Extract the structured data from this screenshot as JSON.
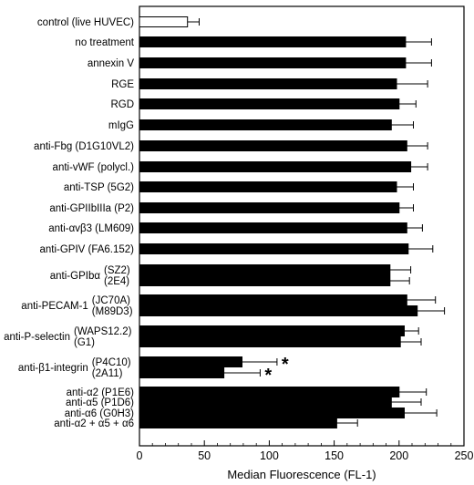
{
  "chart_data": {
    "type": "bar",
    "orientation": "horizontal",
    "xlabel": "Median Fluorescence (FL-1)",
    "xlim": [
      0,
      250
    ],
    "xticks": [
      0,
      50,
      100,
      150,
      200,
      250
    ],
    "grid": false,
    "bars": [
      {
        "group": "control (live HUVEC)",
        "sub": "",
        "value": 37,
        "error": 9,
        "fill": "white",
        "star": false
      },
      {
        "group": "no treatment",
        "sub": "",
        "value": 205,
        "error": 20,
        "fill": "black",
        "star": false
      },
      {
        "group": "annexin V",
        "sub": "",
        "value": 205,
        "error": 20,
        "fill": "black",
        "star": false
      },
      {
        "group": "RGE",
        "sub": "",
        "value": 198,
        "error": 24,
        "fill": "black",
        "star": false
      },
      {
        "group": "RGD",
        "sub": "",
        "value": 200,
        "error": 13,
        "fill": "black",
        "star": false
      },
      {
        "group": "mIgG",
        "sub": "",
        "value": 194,
        "error": 17,
        "fill": "black",
        "star": false
      },
      {
        "group": "anti-Fbg (D1G10VL2)",
        "sub": "",
        "value": 206,
        "error": 16,
        "fill": "black",
        "star": false
      },
      {
        "group": "anti-vWF (polycl.)",
        "sub": "",
        "value": 209,
        "error": 13,
        "fill": "black",
        "star": false
      },
      {
        "group": "anti-TSP (5G2)",
        "sub": "",
        "value": 198,
        "error": 13,
        "fill": "black",
        "star": false
      },
      {
        "group": "anti-GPIIbIIIa (P2)",
        "sub": "",
        "value": 200,
        "error": 11,
        "fill": "black",
        "star": false
      },
      {
        "group": "anti-αvβ3 (LM609)",
        "sub": "",
        "value": 206,
        "error": 12,
        "fill": "black",
        "star": false
      },
      {
        "group": "anti-GPIV (FA6.152)",
        "sub": "",
        "value": 207,
        "error": 19,
        "fill": "black",
        "star": false
      },
      {
        "group": "anti-GPIbα",
        "sub": "(SZ2)",
        "value": 193,
        "error": 16,
        "fill": "black",
        "star": false
      },
      {
        "group": "anti-GPIbα",
        "sub": "(2E4)",
        "value": 193,
        "error": 15,
        "fill": "black",
        "star": false
      },
      {
        "group": "anti-PECAM-1",
        "sub": "(JC70A)",
        "value": 206,
        "error": 22,
        "fill": "black",
        "star": false
      },
      {
        "group": "anti-PECAM-1",
        "sub": "(M89D3)",
        "value": 214,
        "error": 21,
        "fill": "black",
        "star": false
      },
      {
        "group": "anti-P-selectin",
        "sub": "(WAPS12.2)",
        "value": 204,
        "error": 11,
        "fill": "black",
        "star": false
      },
      {
        "group": "anti-P-selectin",
        "sub": "(G1)",
        "value": 201,
        "error": 16,
        "fill": "black",
        "star": false
      },
      {
        "group": "anti-β1-integrin",
        "sub": "(P4C10)",
        "value": 79,
        "error": 27,
        "fill": "black",
        "star": true
      },
      {
        "group": "anti-β1-integrin",
        "sub": "(2A11)",
        "value": 65,
        "error": 28,
        "fill": "black",
        "star": true
      },
      {
        "group": "anti-α2 (P1E6)",
        "sub": "",
        "value": 200,
        "error": 21,
        "fill": "black",
        "star": false
      },
      {
        "group": "anti-α5 (P1D6)",
        "sub": "",
        "value": 194,
        "error": 23,
        "fill": "black",
        "star": false
      },
      {
        "group": "anti-α6 (G0H3)",
        "sub": "",
        "value": 204,
        "error": 25,
        "fill": "black",
        "star": false
      },
      {
        "group": "anti-α2 + α5 + α6",
        "sub": "",
        "value": 152,
        "error": 16,
        "fill": "black",
        "star": false
      }
    ],
    "star_symbol": "*"
  }
}
